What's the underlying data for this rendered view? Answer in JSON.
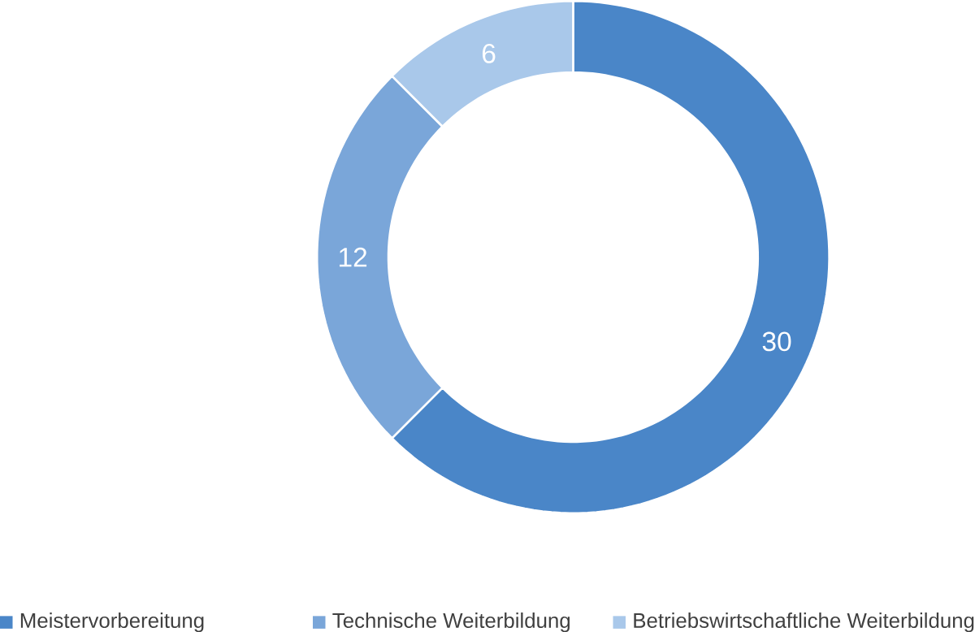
{
  "chart_data": {
    "type": "donut",
    "categories": [
      "Meistervorbereitung",
      "Technische Weiterbildung",
      "Betriebswirtschaftliche Weiterbildung"
    ],
    "values": [
      30,
      12,
      6
    ],
    "colors": [
      "#4a86c8",
      "#7aa6d9",
      "#a9c8ea"
    ],
    "data_labels": true,
    "legend": "bottom"
  }
}
